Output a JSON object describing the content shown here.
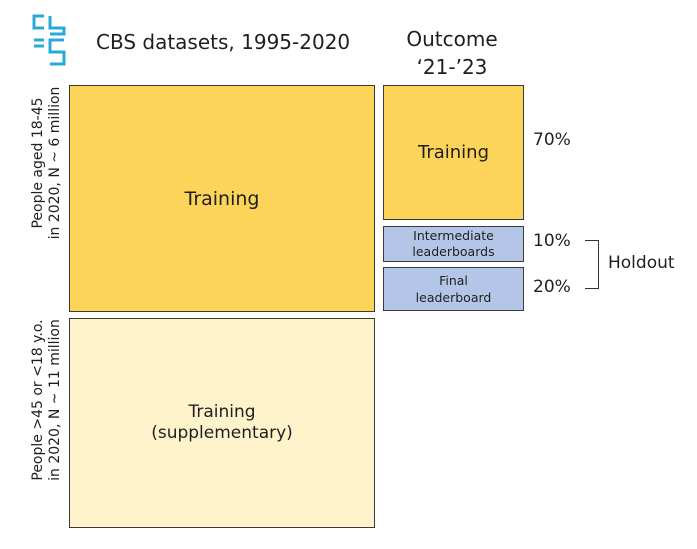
{
  "logo": {
    "icon": "cbs-logo-icon",
    "color": "#29a9d8"
  },
  "header": {
    "title": "CBS datasets, 1995-2020",
    "outcome_line1": "Outcome",
    "outcome_line2": "‘21-’23"
  },
  "row_labels": {
    "top_line1": "People aged 18-45",
    "top_line2": "in 2020, N ~ 6 million",
    "bottom_line1": "People >45 or <18  y.o.",
    "bottom_line2": "in 2020, N ~ 11 million"
  },
  "boxes": {
    "main_training": "Training",
    "supplementary_line1": "Training",
    "supplementary_line2": "(supplementary)",
    "outcome_training": "Training",
    "intermediate_line1": "Intermediate",
    "intermediate_line2": "leaderboards",
    "final_line1": "Final",
    "final_line2": "leaderboard"
  },
  "percentages": {
    "training": "70%",
    "intermediate": "10%",
    "final": "20%"
  },
  "holdout_label": "Holdout",
  "colors": {
    "training": "#fcd45a",
    "supplementary": "#fff3cc",
    "holdout": "#b4c6e7"
  }
}
